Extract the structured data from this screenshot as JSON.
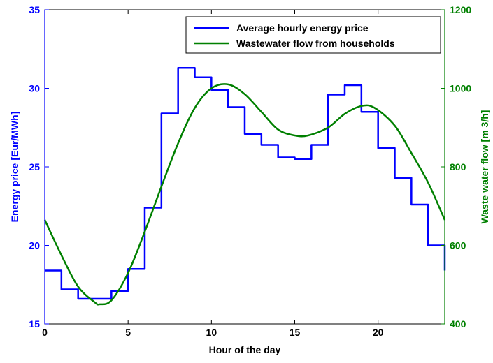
{
  "chart_data": {
    "type": "line",
    "xlabel": "Hour of the day",
    "ylabel_left": "Energy price [Eur/MWh]",
    "ylabel_right": "Waste water flow [m  3/h]",
    "xlim": [
      0,
      24
    ],
    "ylim_left": [
      15,
      35
    ],
    "ylim_right": [
      400,
      1200
    ],
    "xticks": [
      0,
      5,
      10,
      15,
      20
    ],
    "yticks_left": [
      15,
      20,
      25,
      30,
      35
    ],
    "yticks_right": [
      400,
      600,
      800,
      1000,
      1200
    ],
    "grid": false,
    "legend_position": "top-right",
    "series": [
      {
        "name": "Average hourly energy price",
        "axis": "left",
        "step": "post",
        "color": "#0000ff",
        "x": [
          0,
          1,
          2,
          3,
          4,
          5,
          6,
          7,
          8,
          9,
          10,
          11,
          12,
          13,
          14,
          15,
          16,
          17,
          18,
          19,
          20,
          21,
          22,
          23,
          24
        ],
        "values": [
          18.4,
          17.2,
          16.6,
          16.6,
          17.1,
          18.5,
          22.4,
          28.4,
          31.3,
          30.7,
          29.9,
          28.8,
          27.1,
          26.4,
          25.6,
          25.5,
          26.4,
          29.6,
          30.2,
          28.5,
          26.2,
          24.3,
          22.6,
          20.0,
          18.4
        ]
      },
      {
        "name": "Wastewater flow from households",
        "axis": "right",
        "color": "#008000",
        "x": [
          0,
          1,
          2,
          3,
          3.3,
          4,
          5,
          6,
          7,
          8,
          9,
          10,
          11,
          12,
          13,
          14,
          15,
          15.8,
          17,
          18,
          19,
          19.8,
          21,
          22,
          23,
          24
        ],
        "values": [
          665,
          575,
          495,
          455,
          450,
          460,
          530,
          635,
          750,
          860,
          950,
          1000,
          1010,
          985,
          940,
          895,
          880,
          880,
          900,
          935,
          955,
          950,
          905,
          835,
          760,
          665
        ]
      }
    ]
  }
}
